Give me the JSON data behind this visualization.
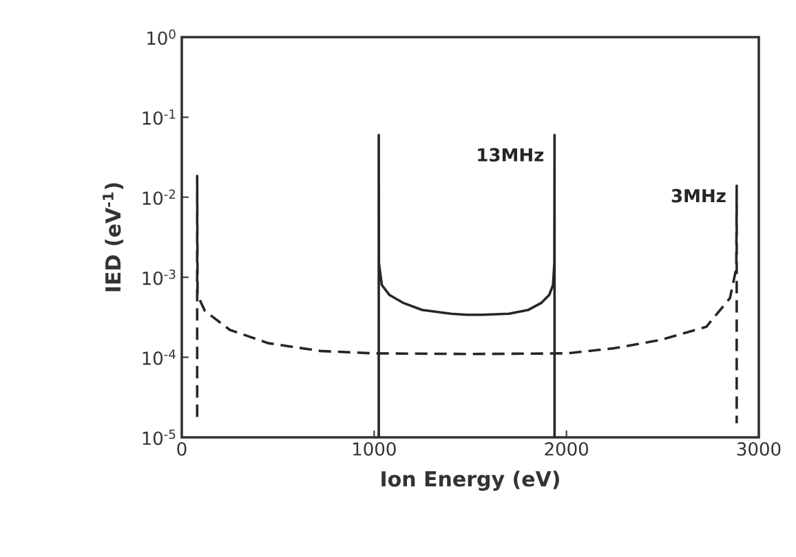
{
  "chart_data": {
    "type": "line",
    "xlabel": "Ion Energy (eV)",
    "ylabel": "IED (eV$^{-1}$)",
    "log": "y",
    "xlim": [
      0,
      3000
    ],
    "ylim": [
      1e-05,
      1
    ],
    "xticks": [
      0,
      1000,
      2000,
      3000
    ],
    "yticks": [
      {
        "value": 1e-05,
        "label": "10$^{-5}$"
      },
      {
        "value": 0.0001,
        "label": "10$^{-4}$"
      },
      {
        "value": 0.001,
        "label": "10$^{-3}$"
      },
      {
        "value": 0.01,
        "label": "10$^{-2}$"
      },
      {
        "value": 0.1,
        "label": "10$^{-1}$"
      },
      {
        "value": 1,
        "label": "10$^{0}$"
      }
    ],
    "grid": false,
    "legend": false,
    "marker": "none",
    "series": [
      {
        "name": "13MHz",
        "color": "#262626",
        "line_style": "solid",
        "x": [
          1024,
          1024,
          1025,
          1040,
          1080,
          1150,
          1250,
          1400,
          1480,
          1560,
          1700,
          1800,
          1870,
          1910,
          1930,
          1937,
          1938,
          1938
        ],
        "values": [
          1e-05,
          0.06,
          0.0015,
          0.0008,
          0.0006,
          0.00048,
          0.00039,
          0.00035,
          0.00034,
          0.00034,
          0.00035,
          0.00039,
          0.00048,
          0.0006,
          0.0008,
          0.0015,
          0.06,
          1e-05
        ]
      },
      {
        "name": "3MHz",
        "color": "#262626",
        "line_style": "dashed",
        "x": [
          80,
          80,
          82,
          120,
          250,
          450,
          720,
          1000,
          1500,
          2000,
          2250,
          2490,
          2727,
          2850,
          2883,
          2885,
          2885
        ],
        "values": [
          1.8e-05,
          0.0185,
          0.0006,
          0.00038,
          0.00022,
          0.00015,
          0.00012,
          0.000112,
          0.00011,
          0.000112,
          0.00013,
          0.000165,
          0.00024,
          0.00055,
          0.0013,
          0.0139,
          1.5e-05
        ]
      }
    ]
  }
}
